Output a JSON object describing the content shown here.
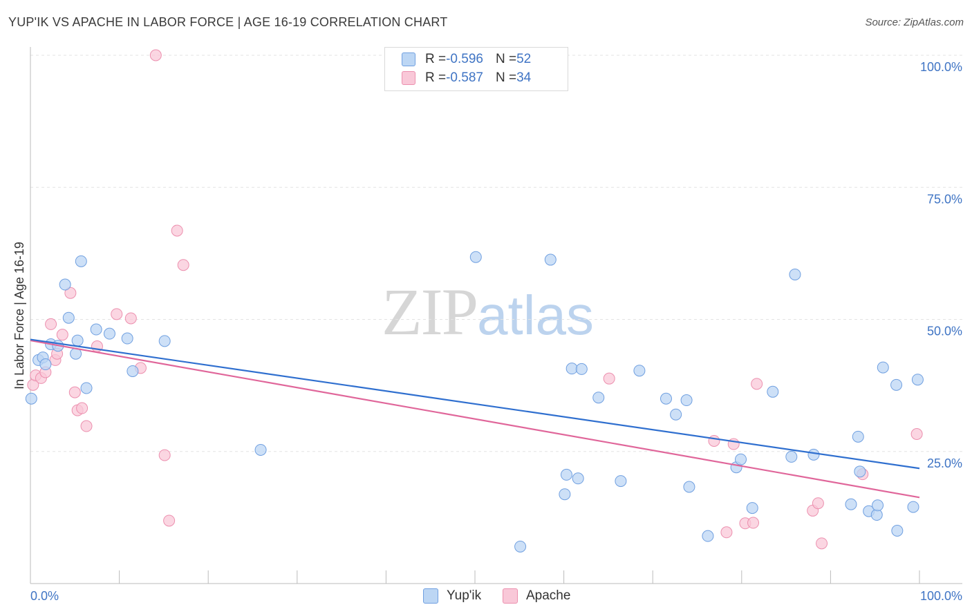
{
  "header": {
    "title": "YUP'IK VS APACHE IN LABOR FORCE | AGE 16-19 CORRELATION CHART",
    "source": "Source: ZipAtlas.com"
  },
  "watermark": {
    "zip": "ZIP",
    "atlas": "atlas"
  },
  "legend": {
    "rows": [
      {
        "r_label": "R = ",
        "r_value": "-0.596",
        "n_label": "N = ",
        "n_value": "52"
      },
      {
        "r_label": "R = ",
        "r_value": "-0.587",
        "n_label": "N = ",
        "n_value": "34"
      }
    ]
  },
  "bottom_legend": {
    "yupik": "Yup'ik",
    "apache": "Apache"
  },
  "colors": {
    "yupik_fill": "#bcd6f4",
    "yupik_stroke": "#6f9fe0",
    "yupik_line": "#2f6fcf",
    "apache_fill": "#f9c8d8",
    "apache_stroke": "#ec8fae",
    "apache_line": "#e0669a",
    "tick_text": "#3f74c4",
    "grid": "#e3e3e3"
  },
  "chart_data": {
    "type": "scatter",
    "title": "YUP'IK VS APACHE IN LABOR FORCE | AGE 16-19 CORRELATION CHART",
    "xlabel": "",
    "ylabel": "In Labor Force | Age 16-19",
    "xlim": [
      0,
      100
    ],
    "ylim": [
      0,
      100
    ],
    "x_tick_labels": [
      "0.0%",
      "100.0%"
    ],
    "y_tick_labels": [
      "25.0%",
      "50.0%",
      "75.0%",
      "100.0%"
    ],
    "y_ticks": [
      25,
      50,
      75,
      100
    ],
    "grid": true,
    "legend_position": "top-center",
    "series": [
      {
        "name": "Yup'ik",
        "r": -0.596,
        "n": 52,
        "trend": {
          "x": [
            0,
            100
          ],
          "y": [
            46.2,
            21.8
          ]
        },
        "points": [
          [
            0.1,
            35.0
          ],
          [
            0.9,
            42.3
          ],
          [
            1.4,
            42.8
          ],
          [
            1.7,
            41.5
          ],
          [
            2.3,
            45.3
          ],
          [
            3.1,
            45.0
          ],
          [
            3.9,
            56.6
          ],
          [
            4.3,
            50.3
          ],
          [
            5.1,
            43.5
          ],
          [
            5.3,
            46.0
          ],
          [
            5.7,
            61.0
          ],
          [
            6.3,
            37.0
          ],
          [
            7.4,
            48.1
          ],
          [
            8.9,
            47.3
          ],
          [
            10.9,
            46.4
          ],
          [
            11.5,
            40.2
          ],
          [
            15.1,
            45.9
          ],
          [
            25.9,
            25.3
          ],
          [
            50.1,
            61.8
          ],
          [
            55.1,
            7.0
          ],
          [
            58.5,
            61.3
          ],
          [
            60.1,
            16.9
          ],
          [
            60.3,
            20.6
          ],
          [
            60.9,
            40.7
          ],
          [
            61.6,
            19.9
          ],
          [
            63.9,
            35.2
          ],
          [
            66.4,
            19.4
          ],
          [
            68.5,
            40.3
          ],
          [
            71.5,
            35.0
          ],
          [
            72.6,
            32.0
          ],
          [
            73.8,
            34.7
          ],
          [
            74.1,
            18.3
          ],
          [
            76.2,
            9.0
          ],
          [
            79.4,
            22.0
          ],
          [
            79.9,
            23.5
          ],
          [
            81.2,
            14.3
          ],
          [
            83.5,
            36.3
          ],
          [
            85.6,
            24.0
          ],
          [
            86.0,
            58.5
          ],
          [
            88.1,
            24.4
          ],
          [
            92.3,
            15.0
          ],
          [
            93.1,
            27.8
          ],
          [
            93.3,
            21.2
          ],
          [
            94.3,
            13.7
          ],
          [
            95.2,
            13.0
          ],
          [
            95.3,
            14.8
          ],
          [
            95.9,
            40.9
          ],
          [
            97.4,
            37.6
          ],
          [
            97.5,
            10.0
          ],
          [
            99.3,
            14.5
          ],
          [
            99.8,
            38.6
          ],
          [
            62.0,
            40.6
          ]
        ]
      },
      {
        "name": "Apache",
        "r": -0.587,
        "n": 34,
        "trend": {
          "x": [
            0,
            100
          ],
          "y": [
            46.0,
            16.3
          ]
        },
        "points": [
          [
            0.3,
            37.6
          ],
          [
            0.6,
            39.4
          ],
          [
            1.2,
            38.9
          ],
          [
            1.7,
            40.0
          ],
          [
            2.3,
            49.1
          ],
          [
            2.8,
            42.3
          ],
          [
            3.0,
            43.5
          ],
          [
            3.6,
            47.1
          ],
          [
            4.5,
            55.0
          ],
          [
            5.0,
            36.2
          ],
          [
            5.3,
            32.8
          ],
          [
            5.8,
            33.2
          ],
          [
            6.3,
            29.8
          ],
          [
            7.5,
            44.9
          ],
          [
            9.7,
            51.0
          ],
          [
            11.3,
            50.2
          ],
          [
            12.4,
            40.8
          ],
          [
            14.1,
            100.0
          ],
          [
            15.1,
            24.3
          ],
          [
            15.6,
            11.9
          ],
          [
            16.5,
            66.8
          ],
          [
            17.2,
            60.3
          ],
          [
            65.1,
            38.8
          ],
          [
            76.9,
            27.0
          ],
          [
            78.3,
            9.7
          ],
          [
            79.1,
            26.4
          ],
          [
            80.4,
            11.4
          ],
          [
            81.3,
            11.5
          ],
          [
            81.7,
            37.8
          ],
          [
            88.0,
            13.8
          ],
          [
            88.6,
            15.2
          ],
          [
            89.0,
            7.6
          ],
          [
            93.6,
            20.7
          ],
          [
            99.7,
            28.3
          ]
        ]
      }
    ]
  }
}
